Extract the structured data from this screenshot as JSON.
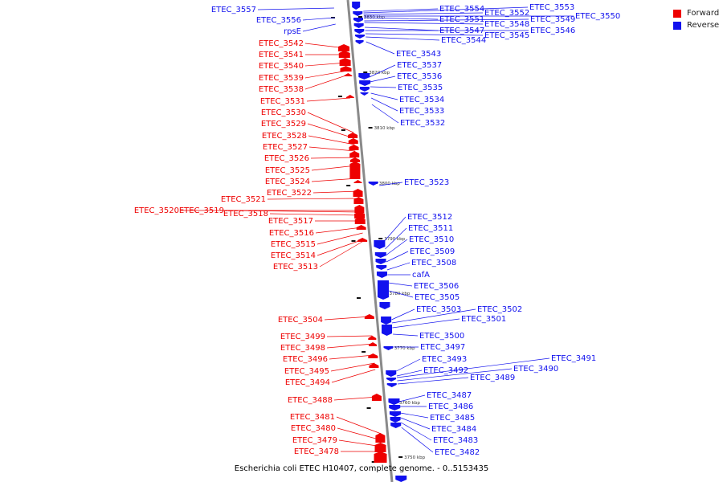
{
  "colors": {
    "forward": "#ee0000",
    "reverse": "#1111ee",
    "backbone": "#8a8a8a"
  },
  "legend": {
    "forward": "Forward",
    "reverse": "Reverse"
  },
  "caption": "Escherichia coli ETEC H10407, complete genome. - 0..5153435",
  "ticks": [
    "3830 kbp",
    "3820 kbp",
    "3810 kbp",
    "3800 kbp",
    "3790 kbp",
    "3780 kbp",
    "3770 kbp",
    "3760 kbp",
    "3750 kbp"
  ],
  "forward_genes": [
    "ETEC_3542",
    "ETEC_3541",
    "ETEC_3540",
    "ETEC_3539",
    "ETEC_3538",
    "ETEC_3531",
    "ETEC_3530",
    "ETEC_3529",
    "ETEC_3528",
    "ETEC_3527",
    "ETEC_3526",
    "ETEC_3525",
    "ETEC_3524",
    "ETEC_3522",
    "ETEC_3521",
    "ETEC_3520",
    "ETEC_3519",
    "ETEC_3518",
    "ETEC_3517",
    "ETEC_3516",
    "ETEC_3515",
    "ETEC_3514",
    "ETEC_3513",
    "ETEC_3504",
    "ETEC_3499",
    "ETEC_3498",
    "ETEC_3496",
    "ETEC_3495",
    "ETEC_3494",
    "ETEC_3488",
    "ETEC_3481",
    "ETEC_3480",
    "ETEC_3479",
    "ETEC_3478"
  ],
  "reverse_genes": [
    "ETEC_3557",
    "ETEC_3556",
    "rpsE",
    "ETEC_3554",
    "ETEC_3553",
    "ETEC_3552",
    "ETEC_3551",
    "ETEC_3550",
    "ETEC_3549",
    "ETEC_3548",
    "ETEC_3547",
    "ETEC_3546",
    "ETEC_3545",
    "ETEC_3544",
    "ETEC_3543",
    "ETEC_3537",
    "ETEC_3536",
    "ETEC_3535",
    "ETEC_3534",
    "ETEC_3533",
    "ETEC_3532",
    "ETEC_3523",
    "ETEC_3512",
    "ETEC_3511",
    "ETEC_3510",
    "ETEC_3509",
    "ETEC_3508",
    "cafA",
    "ETEC_3506",
    "ETEC_3505",
    "ETEC_3503",
    "ETEC_3502",
    "ETEC_3501",
    "ETEC_3500",
    "ETEC_3497",
    "ETEC_3493",
    "ETEC_3492",
    "ETEC_3491",
    "ETEC_3490",
    "ETEC_3489",
    "ETEC_3487",
    "ETEC_3486",
    "ETEC_3485",
    "ETEC_3484",
    "ETEC_3483",
    "ETEC_3482"
  ]
}
